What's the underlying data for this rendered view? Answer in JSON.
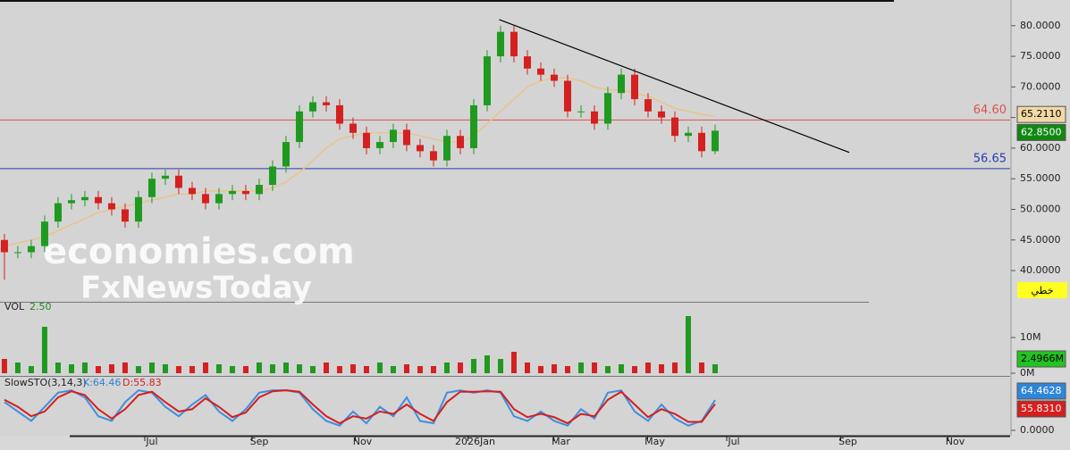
{
  "chart_data": [
    {
      "type": "candlestick",
      "open": [
        45,
        43,
        43,
        44,
        48,
        51,
        51.5,
        52,
        51,
        50,
        48,
        52,
        55,
        55.5,
        53.5,
        52.5,
        51,
        52.5,
        53,
        52.5,
        54,
        57,
        61,
        66,
        67.5,
        67,
        64,
        62.5,
        60,
        61,
        63,
        60.5,
        59.5,
        58,
        62,
        60,
        67,
        75,
        79,
        75,
        73,
        72,
        71,
        66,
        66,
        64,
        69,
        72,
        68,
        66,
        65,
        62,
        62.5,
        59.5
      ],
      "high": [
        46,
        44,
        45,
        49,
        52,
        52.5,
        53,
        53,
        52,
        51,
        53,
        56,
        56.5,
        56.5,
        54.5,
        53.5,
        53.5,
        54,
        54,
        55,
        58,
        62,
        67,
        68.5,
        68.5,
        68,
        65,
        63.5,
        62,
        64,
        64,
        61.5,
        60.5,
        63,
        63,
        68,
        76,
        80,
        80,
        76,
        74,
        73,
        72,
        67,
        67,
        70,
        73,
        73,
        69,
        67,
        66,
        63.5,
        63.5,
        63.85
      ],
      "low": [
        38.5,
        42,
        42,
        43,
        47,
        50,
        50.5,
        50,
        49,
        47,
        47,
        51,
        54,
        52.5,
        51.5,
        50,
        50,
        51.5,
        51.5,
        51.5,
        53,
        56,
        60,
        65,
        66,
        63,
        61.5,
        59,
        59,
        60,
        59.5,
        58.5,
        57,
        57,
        59,
        59,
        66,
        74,
        74,
        72,
        71,
        70,
        65,
        65,
        63,
        63,
        68,
        67,
        65,
        64,
        61,
        61,
        58.5,
        59
      ],
      "close": [
        43,
        43,
        44,
        48,
        51,
        51.5,
        52,
        51,
        50,
        48,
        52,
        55,
        55.5,
        53.5,
        52.5,
        51,
        52.5,
        53,
        52.5,
        54,
        57,
        61,
        66,
        67.5,
        67,
        64,
        62.5,
        60,
        61,
        63,
        60.5,
        59.5,
        58,
        62,
        60,
        67,
        75,
        79,
        75,
        73,
        72,
        71,
        66,
        66,
        64,
        69,
        72,
        68,
        66,
        65,
        62,
        62.5,
        59.5,
        62.85
      ],
      "close_label": "62.8500",
      "up_color": "#1f9a1f",
      "down_color": "#d42020",
      "ma": {
        "color": "#e8c48a",
        "values": [
          44,
          44.5,
          45,
          45.5,
          46.5,
          47.5,
          48.5,
          49.5,
          50,
          50.5,
          51,
          51.5,
          52,
          52.5,
          52.5,
          53,
          53,
          53,
          53,
          53,
          53.5,
          54.5,
          56,
          58,
          60,
          61.5,
          62,
          62.5,
          62.5,
          62.5,
          62.5,
          62,
          61.5,
          61,
          61,
          62,
          64,
          66,
          68,
          70,
          71,
          71.5,
          71.5,
          71,
          70,
          69.5,
          69.5,
          69,
          68.5,
          67.5,
          66.5,
          66,
          65.5,
          65.211
        ],
        "last_label": "65.2110"
      },
      "levels": [
        {
          "value": 64.6,
          "label": "64.60",
          "color": "#d9534f"
        },
        {
          "value": 56.65,
          "label": "56.65",
          "color": "#2a3bb0"
        }
      ],
      "trendline": {
        "x": [
          36.9,
          63
        ],
        "y": [
          81,
          59.3
        ],
        "color": "#000000"
      },
      "xlim": [
        -0.33,
        75
      ],
      "ylim": [
        34.9,
        84.2
      ],
      "yticks": [
        {
          "value": 40,
          "label": "40.0000"
        },
        {
          "value": 45,
          "label": "45.0000"
        },
        {
          "value": 50,
          "label": "50.0000"
        },
        {
          "value": 55,
          "label": "55.0000"
        },
        {
          "value": 60,
          "label": "60.0000"
        },
        {
          "value": 65,
          "label": "65.0000"
        },
        {
          "value": 70,
          "label": "70.0000"
        },
        {
          "value": 75,
          "label": "75.0000"
        },
        {
          "value": 80,
          "label": "80.0000"
        }
      ],
      "xticks": [
        {
          "value": 11,
          "label": "Jul"
        },
        {
          "value": 19,
          "label": "Sep"
        },
        {
          "value": 26.7,
          "label": "Nov"
        },
        {
          "value": 35.1,
          "label": "2026Jan"
        },
        {
          "value": 41.5,
          "label": "Mar"
        },
        {
          "value": 48.5,
          "label": "May"
        },
        {
          "value": 54.4,
          "label": "Jul"
        },
        {
          "value": 62.9,
          "label": "Sep"
        },
        {
          "value": 70.9,
          "label": "Nov"
        }
      ]
    },
    {
      "type": "bar",
      "title": "VOL",
      "subtitle": "2.50",
      "values": [
        4,
        3,
        2,
        13,
        3,
        2.5,
        3,
        2,
        2.5,
        3,
        2,
        3,
        2.5,
        2,
        2,
        3,
        2.5,
        2,
        2,
        3,
        2.5,
        3,
        2.5,
        2,
        3,
        2,
        2.5,
        2,
        3,
        2,
        2.5,
        2,
        2,
        3,
        3,
        4,
        5,
        4,
        6,
        3,
        2,
        2.5,
        2,
        3,
        3,
        2,
        2.5,
        2,
        3,
        2.5,
        3,
        16,
        3,
        2.4966
      ],
      "last_label": "2.4966M",
      "ylim": [
        0,
        19.5
      ],
      "yticks": [
        {
          "value": 0,
          "label": "0M"
        },
        {
          "value": 10,
          "label": "10M"
        }
      ]
    },
    {
      "type": "line",
      "title": "SlowSTO(3,14,3)",
      "series": [
        {
          "name": "K:64.46",
          "color": "#3d8fe0",
          "values": [
            60,
            40,
            20,
            50,
            80,
            85,
            70,
            30,
            20,
            60,
            85,
            80,
            50,
            30,
            55,
            75,
            40,
            20,
            45,
            80,
            85,
            85,
            80,
            45,
            20,
            10,
            40,
            15,
            50,
            30,
            70,
            20,
            15,
            80,
            85,
            80,
            85,
            80,
            30,
            20,
            40,
            20,
            10,
            45,
            25,
            80,
            85,
            40,
            20,
            55,
            25,
            10,
            20,
            64.4628
          ],
          "last_label": "64.4628"
        },
        {
          "name": "D:55.83",
          "color": "#d41f1f",
          "values": [
            65,
            50,
            30,
            40,
            70,
            83,
            75,
            45,
            25,
            45,
            75,
            82,
            60,
            40,
            45,
            68,
            50,
            28,
            38,
            70,
            83,
            85,
            82,
            55,
            30,
            15,
            30,
            25,
            40,
            35,
            55,
            35,
            20,
            60,
            82,
            82,
            83,
            82,
            45,
            28,
            35,
            28,
            15,
            35,
            30,
            65,
            82,
            55,
            28,
            45,
            35,
            18,
            18,
            55.831
          ],
          "last_label": "55.8310"
        }
      ],
      "ylim": [
        0,
        110
      ],
      "yticks": [
        {
          "value": 0,
          "label": "0.0000"
        }
      ]
    }
  ],
  "watermark": [
    "economies.com",
    "FxNewsToday"
  ],
  "button": "خطي"
}
